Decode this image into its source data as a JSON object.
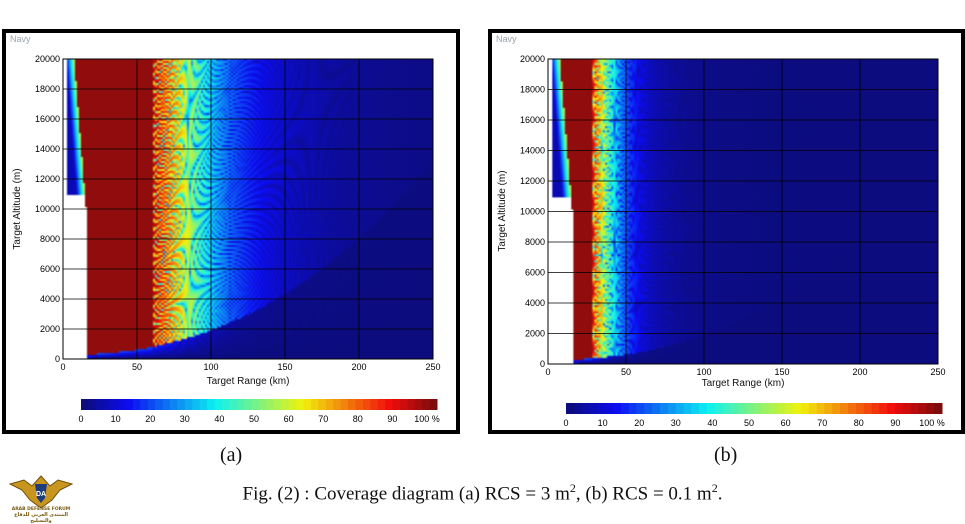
{
  "chart_data": [
    {
      "type": "heatmap",
      "panel_tag": "Navy",
      "xlabel": "Target Range (km)",
      "ylabel": "Target Altitude (m)",
      "xlim": [
        0,
        250
      ],
      "ylim": [
        0,
        20000
      ],
      "x_ticks": [
        0,
        50,
        100,
        150,
        200,
        250
      ],
      "y_ticks": [
        0,
        2000,
        4000,
        6000,
        8000,
        10000,
        12000,
        14000,
        16000,
        18000,
        20000
      ],
      "grid": true,
      "colorbar": {
        "ticks": [
          0,
          10,
          20,
          30,
          40,
          50,
          60,
          70,
          80,
          90,
          100
        ],
        "unit": "%"
      },
      "rcs_m2": 3,
      "blind_range_km": 15,
      "subfigure_label": "(a)"
    },
    {
      "type": "heatmap",
      "panel_tag": "Navy",
      "xlabel": "Target Range (km)",
      "ylabel": "Target Altitude (m)",
      "xlim": [
        0,
        250
      ],
      "ylim": [
        0,
        20000
      ],
      "x_ticks": [
        0,
        50,
        100,
        150,
        200,
        250
      ],
      "y_ticks": [
        0,
        2000,
        4000,
        6000,
        8000,
        10000,
        12000,
        14000,
        16000,
        18000,
        20000
      ],
      "grid": true,
      "colorbar": {
        "ticks": [
          0,
          10,
          20,
          30,
          40,
          50,
          60,
          70,
          80,
          90,
          100
        ],
        "unit": "%"
      },
      "rcs_m2": 0.1,
      "blind_range_km": 15,
      "subfigure_label": "(b)"
    }
  ],
  "caption": {
    "prefix": "Fig. (2) : Coverage diagram (a) RCS = 3 m",
    "sup1": "2",
    "mid": ", (b) RCS = 0.1 m",
    "sup2": "2",
    "suffix": "."
  },
  "logo": {
    "name": "ARAB DEFENSE FORUM",
    "arabic": "المنتدى العربي للدفاع والتسليح",
    "icon": "eagle-emblem-icon"
  }
}
